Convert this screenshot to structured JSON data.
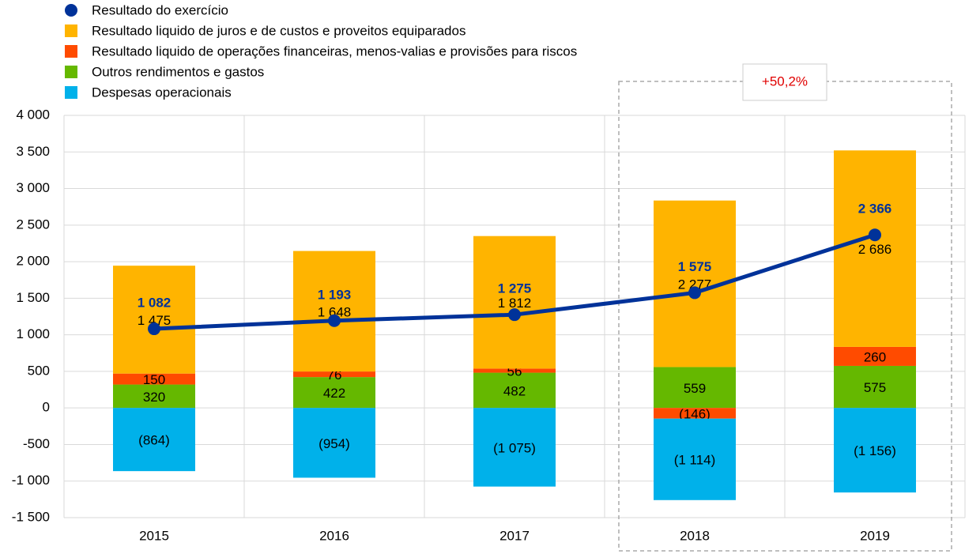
{
  "chart_data": {
    "type": "bar",
    "categories": [
      "2015",
      "2016",
      "2017",
      "2018",
      "2019"
    ],
    "series": [
      {
        "name": "Resultado do exercício",
        "type": "line",
        "color": "#003299",
        "values": [
          1082,
          1193,
          1275,
          1575,
          2366
        ],
        "value_labels": [
          "1 082",
          "1 193",
          "1 275",
          "1 575",
          "2 366"
        ]
      },
      {
        "name": "Resultado liquido de juros e de custos e proveitos equiparados",
        "color": "#FFB400",
        "values": [
          1475,
          1648,
          1812,
          2277,
          2686
        ],
        "value_labels": [
          "1 475",
          "1 648",
          "1 812",
          "2 277",
          "2 686"
        ]
      },
      {
        "name": "Resultado liquido de operações financeiras, menos-valias e provisões para riscos",
        "color": "#FF4B00",
        "values": [
          150,
          76,
          56,
          -146,
          260
        ],
        "value_labels": [
          "150",
          "76",
          "56",
          "(146)",
          "260"
        ]
      },
      {
        "name": "Outros rendimentos e gastos",
        "color": "#65B800",
        "values": [
          320,
          422,
          482,
          559,
          575
        ]
      },
      {
        "name": "Despesas operacionais",
        "color": "#00B1EA",
        "values": [
          -864,
          -954,
          -1075,
          -1114,
          -1156
        ],
        "value_labels": [
          "(864)",
          "(954)",
          "(1 075)",
          "(1 114)",
          "(1 156)"
        ]
      }
    ],
    "annotation": "+50,2%",
    "ylim": [
      -1500,
      4000
    ],
    "yticks": [
      {
        "value": -1500,
        "label": "-1 500"
      },
      {
        "value": -1000,
        "label": "-1 000"
      },
      -500,
      0,
      500,
      {
        "value": 1000,
        "label": "1 000"
      },
      {
        "value": 1500,
        "label": "1 500"
      },
      {
        "value": 2000,
        "label": "2 000"
      },
      {
        "value": 2500,
        "label": "2 500"
      },
      {
        "value": 3000,
        "label": "3 000"
      },
      {
        "value": 3500,
        "label": "3 500"
      },
      {
        "value": 4000,
        "label": "4 000"
      }
    ],
    "grid": true
  }
}
